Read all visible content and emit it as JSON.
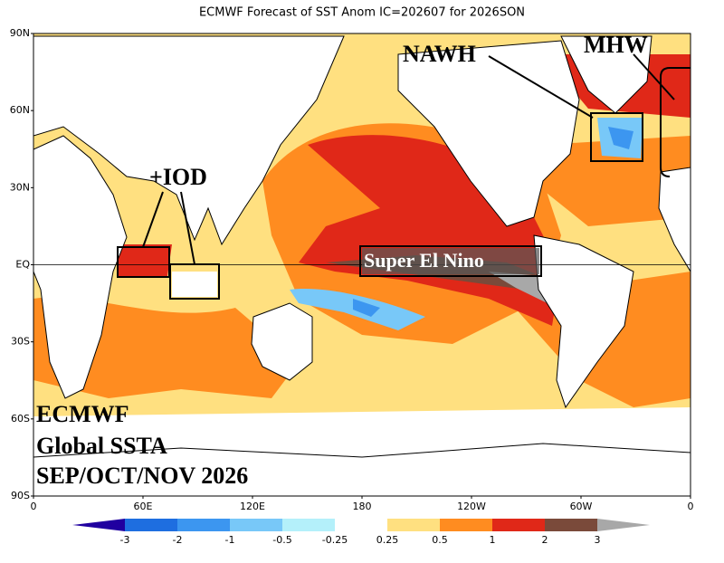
{
  "title": "ECMWF Forecast of SST Anom IC=202607 for 2026SON",
  "y_axis_labels": [
    "90N",
    "60N",
    "30N",
    "EQ",
    "30S",
    "60S",
    "90S"
  ],
  "x_axis_labels": [
    "0",
    "60E",
    "120E",
    "180",
    "120W",
    "60W",
    "0"
  ],
  "annotations": {
    "nawh": "NAWH",
    "mhw": "MHW",
    "iod": "+IOD",
    "el_nino": "Super El Nino"
  },
  "caption": [
    "ECMWF",
    "Global SSTA",
    "SEP/OCT/NOV 2026"
  ],
  "colorbar": {
    "labels": [
      "-3",
      "-2",
      "-1",
      "-0.5",
      "-0.25",
      "0.25",
      "0.5",
      "1",
      "2",
      "3"
    ],
    "colors": [
      "#2000a0",
      "#1e6ee0",
      "#3c96f0",
      "#78c8f8",
      "#b4f0fa",
      "#ffffff",
      "#ffe080",
      "#ff8c20",
      "#e02818",
      "#7a4a3a",
      "#a8a8a8"
    ]
  }
}
